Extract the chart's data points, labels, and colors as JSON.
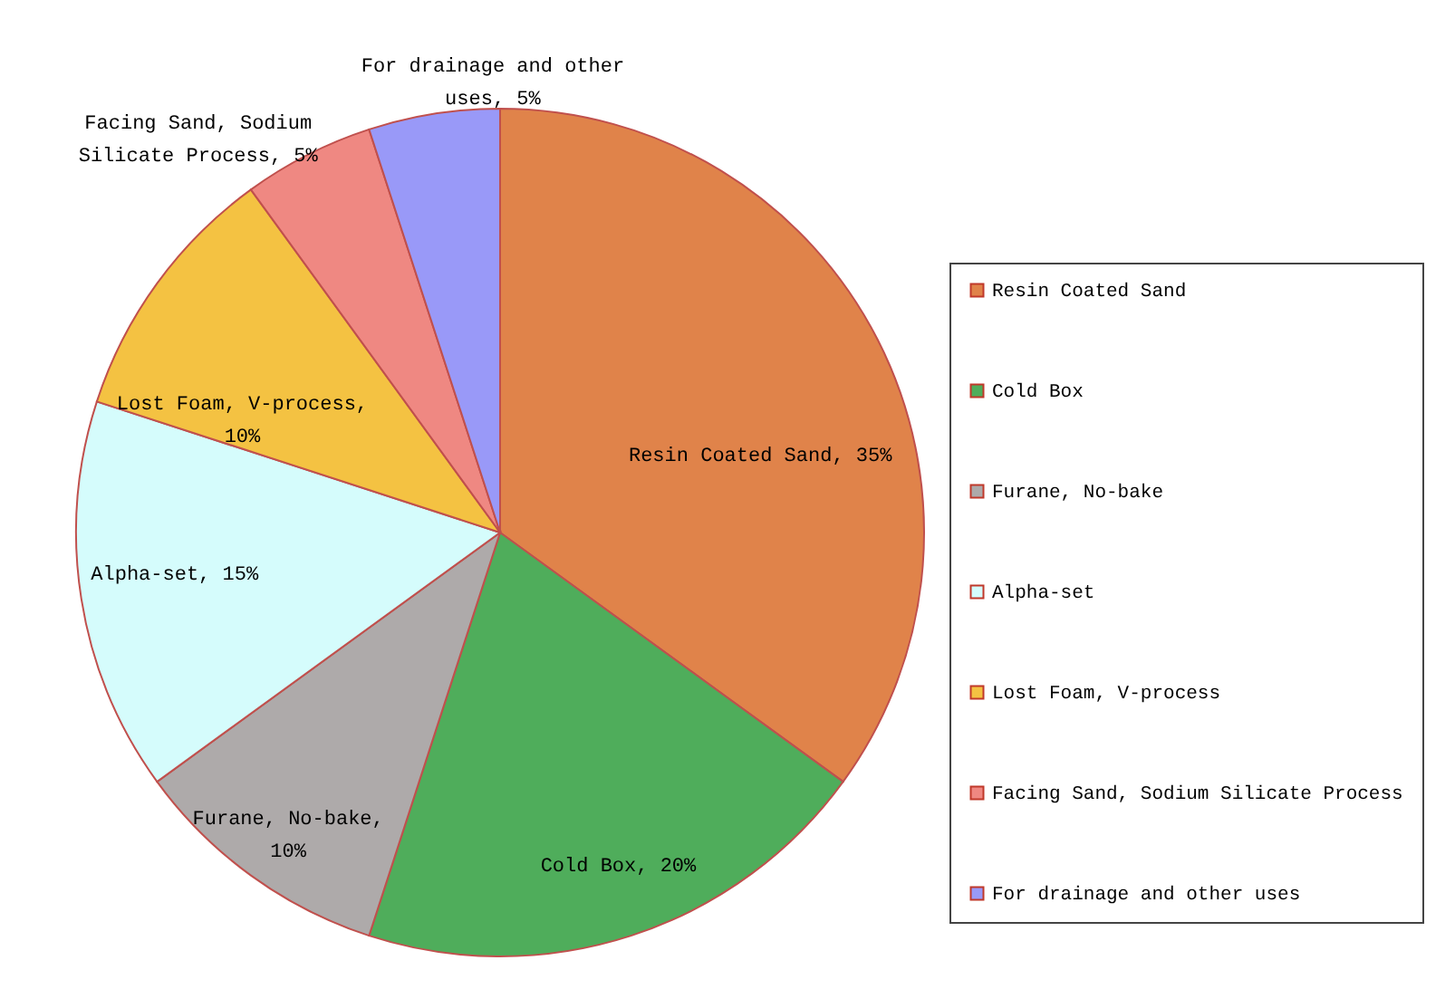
{
  "chart_data": {
    "type": "pie",
    "categories": [
      "Resin Coated Sand",
      "Cold Box",
      "Furane, No-bake",
      "Alpha-set",
      "Lost Foam, V-process",
      "Facing Sand, Sodium Silicate Process",
      "For drainage and other uses"
    ],
    "values": [
      35,
      20,
      10,
      15,
      10,
      5,
      5
    ],
    "colors": [
      "#e0834a",
      "#4fad5b",
      "#aeaaaa",
      "#d5fcfc",
      "#f4c242",
      "#ef8882",
      "#9999f8"
    ],
    "value_labels": [
      "Resin Coated Sand, 35%",
      "Cold Box, 20%",
      "Furane, No-bake, 10%",
      "Alpha-set, 15%",
      "Lost Foam, V-process, 10%",
      "Facing Sand, Sodium Silicate Process, 5%",
      "For drainage and other uses, 5%"
    ],
    "legend": "right"
  }
}
